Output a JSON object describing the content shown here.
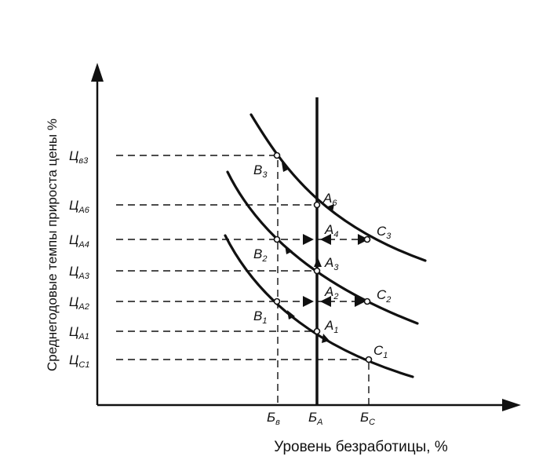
{
  "diagram": {
    "y_axis_label": "Среднегодовые темпы прироста цены %",
    "x_axis_label": "Уровень безработицы, %",
    "y_ticks": [
      {
        "id": "tsv3",
        "text": "Ц",
        "sub": "в3"
      },
      {
        "id": "tsa6",
        "text": "Ц",
        "sub": "A6"
      },
      {
        "id": "tsa4",
        "text": "Ц",
        "sub": "A4"
      },
      {
        "id": "tsa3",
        "text": "Ц",
        "sub": "A3"
      },
      {
        "id": "tsa2",
        "text": "Ц",
        "sub": "A2"
      },
      {
        "id": "tsa1",
        "text": "Ц",
        "sub": "A1"
      },
      {
        "id": "tsc1",
        "text": "Ц",
        "sub": "C1"
      }
    ],
    "x_ticks": [
      {
        "id": "bv",
        "text": "Б",
        "sub": "в"
      },
      {
        "id": "ba",
        "text": "Б",
        "sub": "A"
      },
      {
        "id": "bc",
        "text": "Б",
        "sub": "C"
      }
    ],
    "points": [
      {
        "id": "b3",
        "text": "B",
        "sub": "3"
      },
      {
        "id": "b2",
        "text": "B",
        "sub": "2"
      },
      {
        "id": "b1",
        "text": "B",
        "sub": "1"
      },
      {
        "id": "a6",
        "text": "A",
        "sub": "6"
      },
      {
        "id": "a4",
        "text": "A",
        "sub": "4"
      },
      {
        "id": "a3",
        "text": "A",
        "sub": "3"
      },
      {
        "id": "a2",
        "text": "A",
        "sub": "2"
      },
      {
        "id": "a1",
        "text": "A",
        "sub": "1"
      },
      {
        "id": "c3",
        "text": "C",
        "sub": "3"
      },
      {
        "id": "c2",
        "text": "C",
        "sub": "2"
      },
      {
        "id": "c1",
        "text": "C",
        "sub": "1"
      }
    ],
    "colors": {
      "ink": "#111111",
      "background": "#ffffff"
    }
  }
}
